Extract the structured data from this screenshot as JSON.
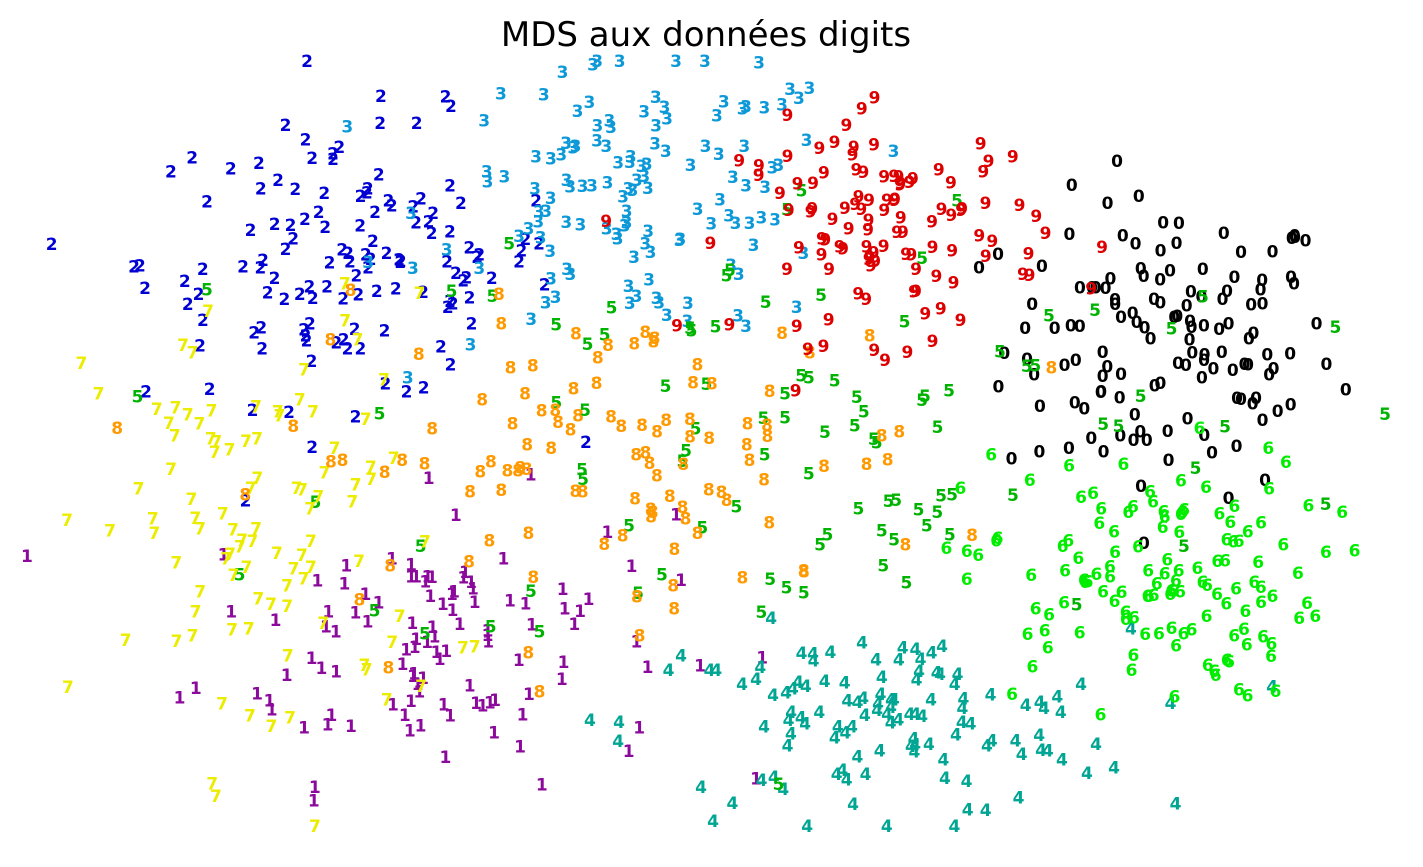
{
  "chart_data": {
    "type": "scatter",
    "title": "MDS aux données digits",
    "axes_visible": false,
    "grid": false,
    "legend": "none",
    "marker": "digit-text",
    "xlim": [
      0,
      1
    ],
    "ylim": [
      0,
      1
    ],
    "colors": {
      "0": "#000000",
      "1": "#8b0a9b",
      "2": "#0000d2",
      "3": "#0d99d8",
      "4": "#00a693",
      "5": "#00b300",
      "6": "#00ed00",
      "7": "#ecec00",
      "8": "#ff9900",
      "9": "#dd0000"
    },
    "clusters": [
      {
        "label": "0",
        "count": 130,
        "cx": 0.83,
        "cy": 0.62,
        "sx": 0.06,
        "sy": 0.095
      },
      {
        "label": "1",
        "count": 110,
        "cx": 0.3,
        "cy": 0.25,
        "sx": 0.085,
        "sy": 0.09
      },
      {
        "label": "2",
        "count": 130,
        "cx": 0.24,
        "cy": 0.73,
        "sx": 0.075,
        "sy": 0.09
      },
      {
        "label": "3",
        "count": 130,
        "cx": 0.45,
        "cy": 0.81,
        "sx": 0.075,
        "sy": 0.09
      },
      {
        "label": "4",
        "count": 120,
        "cx": 0.62,
        "cy": 0.14,
        "sx": 0.09,
        "sy": 0.06
      },
      {
        "label": "5",
        "count": 100,
        "cx": 0.58,
        "cy": 0.52,
        "sx": 0.17,
        "sy": 0.16
      },
      {
        "label": "6",
        "count": 130,
        "cx": 0.81,
        "cy": 0.33,
        "sx": 0.065,
        "sy": 0.08
      },
      {
        "label": "7",
        "count": 100,
        "cx": 0.18,
        "cy": 0.38,
        "sx": 0.065,
        "sy": 0.15
      },
      {
        "label": "8",
        "count": 110,
        "cx": 0.43,
        "cy": 0.48,
        "sx": 0.12,
        "sy": 0.095
      },
      {
        "label": "9",
        "count": 110,
        "cx": 0.63,
        "cy": 0.77,
        "sx": 0.055,
        "sy": 0.07
      }
    ]
  }
}
